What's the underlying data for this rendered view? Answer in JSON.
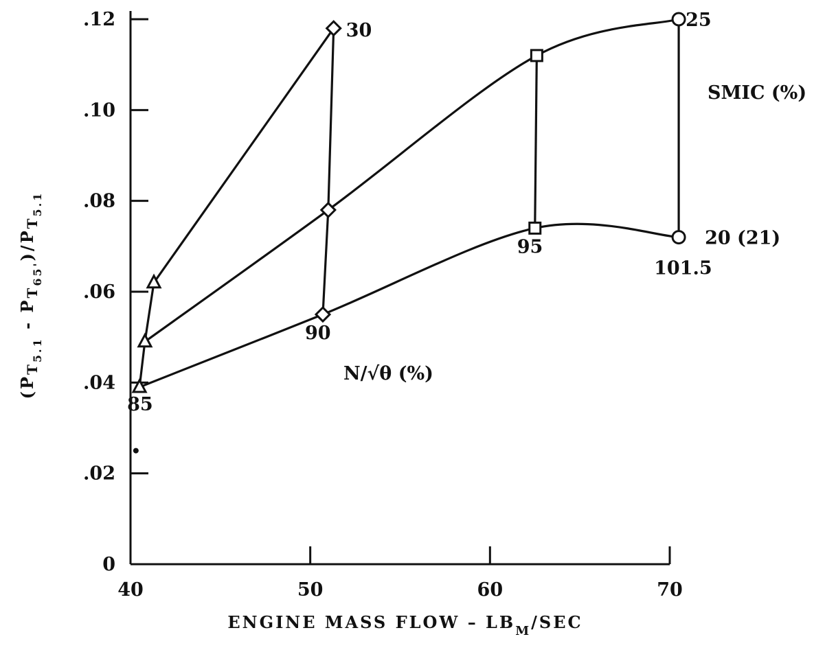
{
  "chart_data": {
    "type": "line",
    "xlabel": {
      "main": "ENGINE  MASS  FLOW  –  LB",
      "sub": "M",
      "tail": "/SEC"
    },
    "ylabel": {
      "open": "(P",
      "s1": "T",
      "s1b": "5.1",
      "mid": "  -  P",
      "s2": "T",
      "s2b": "65'",
      "close": ")/P",
      "s3": "T",
      "s3b": "5.1"
    },
    "xlim": [
      40,
      70
    ],
    "ylim": [
      0,
      0.12
    ],
    "x_ticks": [
      "40",
      "50",
      "60",
      "70"
    ],
    "x_tick_values": [
      40,
      50,
      60,
      70
    ],
    "y_ticks": [
      "0",
      ".02",
      ".04",
      ".06",
      ".08",
      ".10",
      ".12"
    ],
    "y_tick_values": [
      0,
      0.02,
      0.04,
      0.06,
      0.08,
      0.1,
      0.12
    ],
    "speed_title": "N/√θ  (%)",
    "smic_title": "SMIC  (%)",
    "series": [
      {
        "name": "30",
        "points": [
          [
            41.3,
            0.062
          ],
          [
            51.3,
            0.118
          ]
        ]
      },
      {
        "name": "25",
        "points": [
          [
            40.8,
            0.049
          ],
          [
            51.0,
            0.078
          ],
          [
            62.6,
            0.112
          ],
          [
            70.5,
            0.12
          ]
        ]
      },
      {
        "name": "20 (21)",
        "points": [
          [
            40.5,
            0.039
          ],
          [
            50.7,
            0.055
          ],
          [
            62.5,
            0.074
          ],
          [
            70.5,
            0.072
          ]
        ]
      }
    ],
    "speed_lines": [
      {
        "label": "85",
        "points": [
          [
            40.5,
            0.039
          ],
          [
            40.8,
            0.049
          ],
          [
            41.3,
            0.062
          ]
        ],
        "marker": "triangle"
      },
      {
        "label": "90",
        "points": [
          [
            50.7,
            0.055
          ],
          [
            51.0,
            0.078
          ],
          [
            51.3,
            0.118
          ]
        ],
        "marker": "diamond"
      },
      {
        "label": "95",
        "points": [
          [
            62.5,
            0.074
          ],
          [
            62.6,
            0.112
          ]
        ],
        "marker": "square"
      },
      {
        "label": "101.5",
        "points": [
          [
            70.5,
            0.072
          ],
          [
            70.5,
            0.12
          ]
        ],
        "marker": "circle"
      }
    ],
    "stray_point": [
      40.3,
      0.025
    ]
  }
}
